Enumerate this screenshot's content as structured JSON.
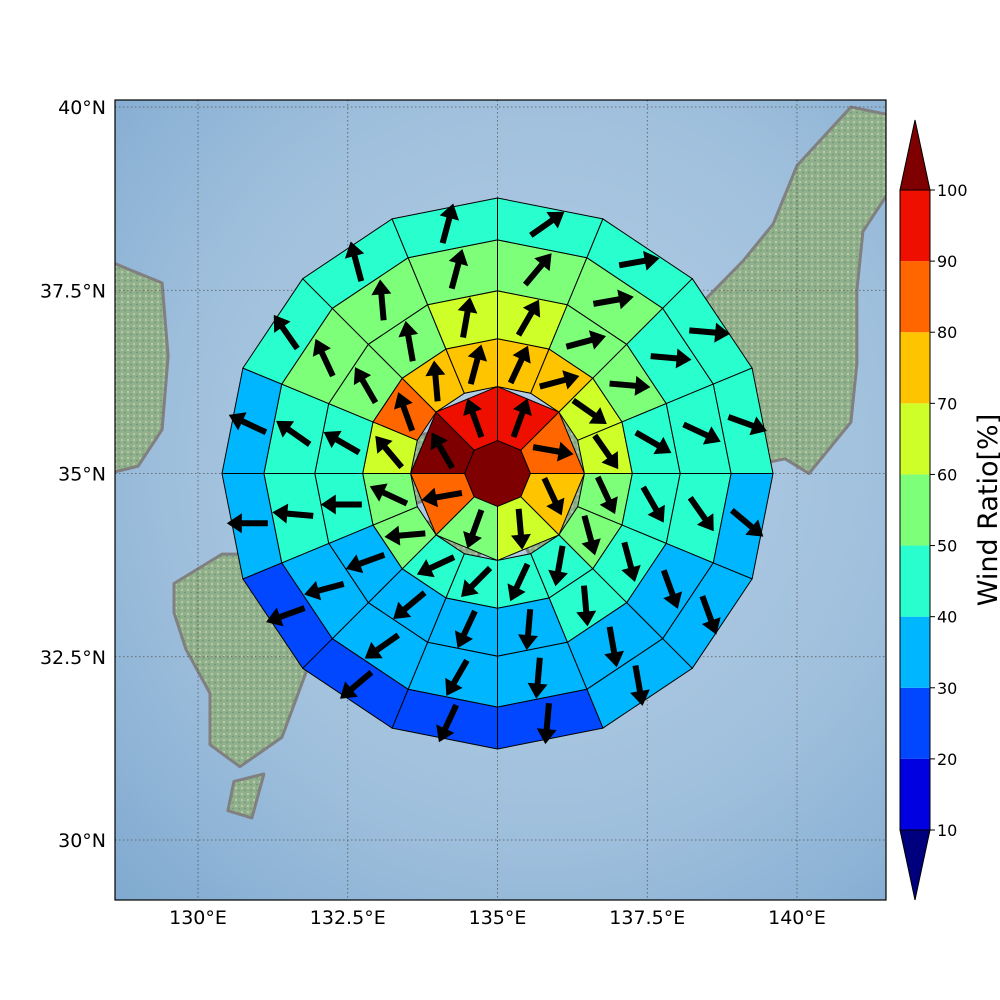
{
  "map": {
    "lon_range": [
      128.5,
      141.5
    ],
    "lat_range": [
      29.2,
      40.1
    ],
    "gridlines": true,
    "lon_ticks": [
      {
        "value": 130,
        "label": "130°E"
      },
      {
        "value": 132.5,
        "label": "132.5°E"
      },
      {
        "value": 135,
        "label": "135°E"
      },
      {
        "value": 137.5,
        "label": "137.5°E"
      },
      {
        "value": 140,
        "label": "140°E"
      }
    ],
    "lat_ticks": [
      {
        "value": 30,
        "label": "30°N"
      },
      {
        "value": 32.5,
        "label": "32.5°N"
      },
      {
        "value": 35,
        "label": "35°N"
      },
      {
        "value": 37.5,
        "label": "37.5°N"
      },
      {
        "value": 40,
        "label": "40°N"
      }
    ],
    "ocean_color": "#9ebfdc",
    "land_color": "#8fb08a",
    "coast_color": "#808080"
  },
  "colorbar": {
    "label": "Wind Ratio[%]",
    "ticks": [
      "10",
      "20",
      "30",
      "40",
      "50",
      "60",
      "70",
      "80",
      "90",
      "100"
    ],
    "colors": [
      "#00007f",
      "#0000e0",
      "#0047ff",
      "#00b6ff",
      "#29ffce",
      "#7dff7a",
      "#ceff29",
      "#ffc400",
      "#ff6600",
      "#ee0f00",
      "#7f0000"
    ],
    "extend": "both"
  },
  "chart_data": {
    "type": "heatmap",
    "description_type": "polar sector grid of wind ratio with wind-direction arrows",
    "center": {
      "lon": 135,
      "lat": 35
    },
    "ring_radii_deg": [
      0.55,
      1.45,
      2.25,
      3.05,
      3.9,
      4.6
    ],
    "sectors_per_ring": [
      1,
      8,
      16,
      16,
      16,
      16
    ],
    "sector_start_bearing_deg": 0,
    "values": [
      [
        100
      ],
      [
        92,
        82,
        70,
        60,
        58,
        82,
        100,
        92
      ],
      [
        75,
        75,
        65,
        60,
        58,
        55,
        42,
        42,
        42,
        40,
        55,
        55,
        65,
        82,
        75,
        75
      ],
      [
        62,
        55,
        55,
        45,
        42,
        42,
        40,
        35,
        35,
        35,
        35,
        45,
        48,
        55,
        55,
        62
      ],
      [
        55,
        55,
        45,
        45,
        42,
        35,
        35,
        35,
        35,
        35,
        35,
        40,
        48,
        55,
        55,
        55
      ],
      [
        42,
        42,
        42,
        42,
        35,
        35,
        35,
        22,
        22,
        22,
        22,
        35,
        35,
        42,
        42,
        42
      ]
    ],
    "arrow_bearings_deg": [
      [
        null
      ],
      [
        20,
        100,
        155,
        175,
        200,
        260,
        330,
        340
      ],
      [
        25,
        75,
        125,
        145,
        155,
        165,
        190,
        205,
        225,
        245,
        265,
        295,
        320,
        340,
        355,
        15
      ],
      [
        30,
        75,
        95,
        120,
        150,
        165,
        175,
        185,
        205,
        230,
        250,
        270,
        300,
        330,
        350,
        10
      ],
      [
        40,
        80,
        95,
        115,
        145,
        160,
        170,
        185,
        210,
        235,
        255,
        275,
        305,
        335,
        355,
        15
      ],
      [
        55,
        80,
        95,
        110,
        130,
        160,
        170,
        185,
        205,
        230,
        250,
        270,
        295,
        325,
        345,
        15
      ]
    ],
    "colorbar_range": [
      10,
      100
    ],
    "xlabel": "",
    "ylabel": ""
  }
}
